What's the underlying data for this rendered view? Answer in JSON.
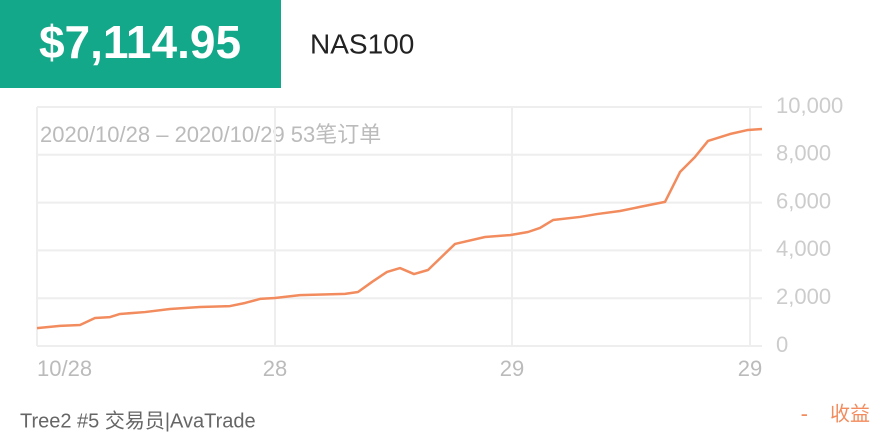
{
  "header": {
    "balance": "$7,114.95",
    "symbol": "NAS100"
  },
  "chart_data": {
    "type": "line",
    "subtitle": "2020/10/28 – 2020/10/29 53笔订单",
    "x": [
      0,
      23,
      43,
      58,
      73,
      83,
      108,
      133,
      163,
      193,
      208,
      223,
      238,
      263,
      308,
      321,
      335,
      350,
      363,
      377,
      391,
      418,
      448,
      473,
      491,
      503,
      516,
      543,
      560,
      583,
      603,
      628,
      643,
      658,
      671,
      693,
      711,
      725
    ],
    "series": [
      {
        "name": "收益",
        "color": "#f28c5e",
        "values": [
          750,
          840,
          880,
          1170,
          1210,
          1340,
          1420,
          1550,
          1630,
          1670,
          1800,
          1970,
          2010,
          2130,
          2180,
          2260,
          2680,
          3100,
          3260,
          3010,
          3180,
          4270,
          4560,
          4640,
          4770,
          4940,
          5270,
          5400,
          5520,
          5650,
          5820,
          6030,
          7280,
          7910,
          8580,
          8870,
          9040,
          9080
        ]
      }
    ],
    "xlim": [
      0,
      725
    ],
    "xticks": [
      {
        "value": 0,
        "label": "10/28"
      },
      {
        "value": 238,
        "label": "28"
      },
      {
        "value": 475,
        "label": "29"
      },
      {
        "value": 713,
        "label": "29"
      }
    ],
    "ylim": [
      0,
      10000
    ],
    "yticks": [
      0,
      {
        "value": 2000,
        "label": "2,000"
      },
      {
        "value": 4000,
        "label": "4,000"
      },
      {
        "value": 6000,
        "label": "6,000"
      },
      {
        "value": 8000,
        "label": "8,000"
      },
      {
        "value": 10000,
        "label": "10,000"
      }
    ],
    "grid": true
  },
  "footer": {
    "account": "Tree2 #5 交易员|AvaTrade",
    "legend_prefix": "-"
  }
}
